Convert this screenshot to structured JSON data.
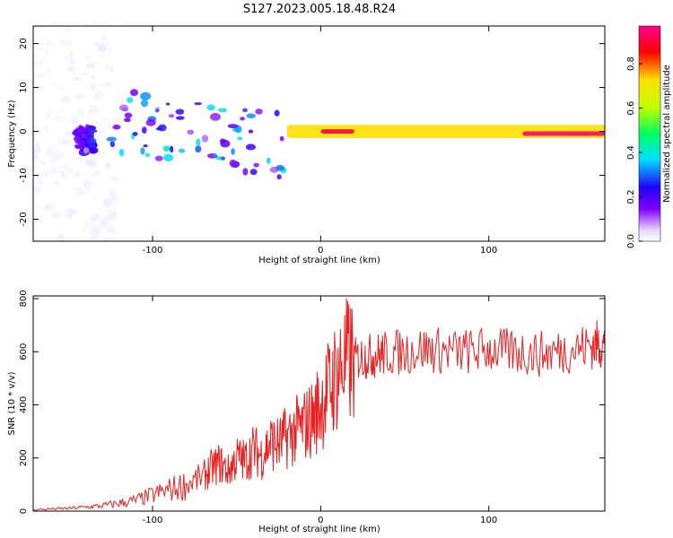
{
  "title": "S127.2023.005.18.48.R24",
  "chart_data": [
    {
      "type": "heatmap",
      "xlabel": "Height of straight line (km)",
      "ylabel": "Frequency (Hz)",
      "xlim": [
        -171,
        169
      ],
      "ylim": [
        -25,
        24
      ],
      "x_ticks": [
        "-100",
        "0",
        "100"
      ],
      "x_tick_values": [
        -100,
        0,
        100
      ],
      "y_ticks": [
        "-20",
        "-10",
        "0",
        "10",
        "20"
      ],
      "y_tick_values": [
        -20,
        -10,
        0,
        10,
        20
      ],
      "colorbar": {
        "label": "Normalized spectral amplitude",
        "range": [
          0,
          0.97
        ],
        "ticks": [
          "0.0",
          "0.2",
          "0.4",
          "0.6",
          "0.8"
        ],
        "tick_values": [
          0.0,
          0.2,
          0.4,
          0.6,
          0.8
        ],
        "colormap": [
          "#ffffff",
          "#e8d8ff",
          "#8000ff",
          "#2000ff",
          "#00e0ff",
          "#00ff60",
          "#c0ff00",
          "#ffe000",
          "#ff0000",
          "#ff0090"
        ]
      },
      "features": [
        {
          "x": [
            -170,
            -120
          ],
          "freq": [
            -25,
            24
          ],
          "amplitude": 0.08,
          "kind": "noise"
        },
        {
          "x": [
            -145,
            -135
          ],
          "freq": [
            -5,
            1
          ],
          "amplitude": 0.3,
          "kind": "blob"
        },
        {
          "x": [
            -125,
            -20
          ],
          "freq": [
            -12,
            9
          ],
          "amplitude": 0.4,
          "kind": "drifting-blobs"
        },
        {
          "x": [
            -20,
            169
          ],
          "freq": [
            -1.5,
            1.5
          ],
          "amplitude": 0.75,
          "kind": "band"
        },
        {
          "x": [
            0,
            20
          ],
          "freq": [
            -0.5,
            0.5
          ],
          "amplitude": 0.92,
          "kind": "band-core"
        },
        {
          "x": [
            120,
            169
          ],
          "freq": [
            -1,
            0
          ],
          "amplitude": 0.95,
          "kind": "band-core"
        }
      ],
      "grid": false
    },
    {
      "type": "line",
      "xlabel": "Height of straight line (km)",
      "ylabel": "SNR (10 * v/v)",
      "xlim": [
        -171,
        169
      ],
      "ylim": [
        0,
        810
      ],
      "x_ticks": [
        "-100",
        "0",
        "100"
      ],
      "x_tick_values": [
        -100,
        0,
        100
      ],
      "y_ticks": [
        "0",
        "200",
        "400",
        "600",
        "800"
      ],
      "y_tick_values": [
        0,
        200,
        400,
        600,
        800
      ],
      "color": "#e82020",
      "grid": false,
      "x": [
        -171,
        -160,
        -150,
        -140,
        -130,
        -120,
        -110,
        -100,
        -90,
        -80,
        -70,
        -65,
        -60,
        -55,
        -50,
        -45,
        -40,
        -35,
        -30,
        -25,
        -20,
        -15,
        -10,
        -5,
        0,
        5,
        10,
        15,
        20,
        25,
        30,
        35,
        40,
        50,
        60,
        70,
        80,
        90,
        100,
        110,
        120,
        130,
        140,
        150,
        160,
        165,
        169
      ],
      "y": [
        5,
        8,
        10,
        15,
        20,
        30,
        40,
        60,
        80,
        100,
        130,
        160,
        180,
        150,
        200,
        190,
        230,
        210,
        260,
        250,
        280,
        300,
        320,
        350,
        400,
        460,
        520,
        560,
        570,
        580,
        585,
        590,
        595,
        600,
        610,
        605,
        600,
        600,
        610,
        600,
        600,
        590,
        600,
        610,
        620,
        630,
        620
      ]
    }
  ]
}
